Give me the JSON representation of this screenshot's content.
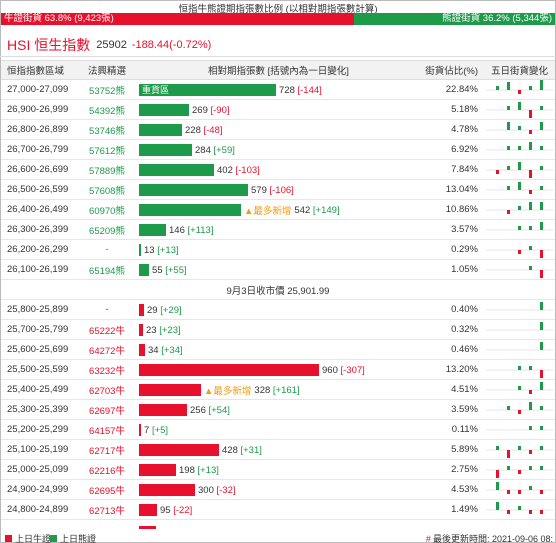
{
  "ratio": {
    "title": "恒指牛熊證期指張數比例 (以相對期指張數計算)",
    "bull_label": "牛證街貨 63.8% (9,423張)",
    "bear_label": "熊證街貨 36.2% (5,344張)",
    "bull_pct": 63.8,
    "colors": {
      "bull": "#e8112d",
      "bear": "#1d9a4a"
    }
  },
  "hsi": {
    "name": "HSI 恒生指數",
    "value": "25902",
    "change": "-188.44(-0.72%)"
  },
  "table": {
    "headers": [
      "恒指指數區域",
      "法興精選",
      "相對期指張數 [括號內為一日變化]",
      "街貨佔比(%)",
      "五日街貨變化"
    ],
    "bear_rows": [
      {
        "range": "27,000-27,099",
        "code": "53752熊",
        "contracts": 728,
        "change": "[-144]",
        "pct": "22.84%",
        "tag": "重貨區",
        "spark": [
          1,
          2,
          -1,
          1,
          3
        ]
      },
      {
        "range": "26,900-26,999",
        "code": "54392熊",
        "contracts": 269,
        "change": "[-90]",
        "pct": "5.18%",
        "spark": [
          0,
          1,
          2,
          -2,
          1
        ]
      },
      {
        "range": "26,800-26,899",
        "code": "53746熊",
        "contracts": 228,
        "change": "[-48]",
        "pct": "4.78%",
        "spark": [
          0,
          2,
          1,
          -1,
          2
        ]
      },
      {
        "range": "26,700-26,799",
        "code": "57612熊",
        "contracts": 284,
        "change": "[+59]",
        "pct": "6.92%",
        "spark": [
          0,
          1,
          1,
          2,
          1
        ]
      },
      {
        "range": "26,600-26,699",
        "code": "57889熊",
        "contracts": 402,
        "change": "[-103]",
        "pct": "7.84%",
        "spark": [
          -1,
          1,
          2,
          -2,
          1
        ]
      },
      {
        "range": "26,500-26,599",
        "code": "57608熊",
        "contracts": 579,
        "change": "[-106]",
        "pct": "13.04%",
        "spark": [
          0,
          1,
          2,
          -1,
          1
        ]
      },
      {
        "range": "26,400-26,499",
        "code": "60970熊",
        "contracts": 542,
        "change": "[+149]",
        "pct": "10.86%",
        "tag": "最多新增",
        "spark": [
          0,
          -1,
          1,
          2,
          2
        ]
      },
      {
        "range": "26,300-26,399",
        "code": "65209熊",
        "contracts": 146,
        "change": "[+113]",
        "pct": "3.57%",
        "spark": [
          0,
          0,
          1,
          1,
          2
        ]
      },
      {
        "range": "26,200-26,299",
        "code": "-",
        "contracts": 13,
        "change": "[+13]",
        "pct": "0.29%",
        "spark": [
          0,
          0,
          -1,
          1,
          -2
        ]
      },
      {
        "range": "26,100-26,199",
        "code": "65194熊",
        "contracts": 55,
        "change": "[+55]",
        "pct": "1.05%",
        "spark": [
          0,
          0,
          0,
          1,
          -2
        ]
      }
    ],
    "mid_label": "9月3日收市價 25,901.99",
    "bull_rows": [
      {
        "range": "25,800-25,899",
        "code": "-",
        "contracts": 29,
        "change": "[+29]",
        "pct": "0.40%",
        "spark": [
          0,
          0,
          0,
          0,
          2
        ]
      },
      {
        "range": "25,700-25,799",
        "code": "65222牛",
        "contracts": 23,
        "change": "[+23]",
        "pct": "0.32%",
        "spark": [
          0,
          0,
          0,
          0,
          2
        ]
      },
      {
        "range": "25,600-25,699",
        "code": "64272牛",
        "contracts": 34,
        "change": "[+34]",
        "pct": "0.46%",
        "spark": [
          0,
          0,
          0,
          0,
          2
        ]
      },
      {
        "range": "25,500-25,599",
        "code": "63232牛",
        "contracts": 960,
        "change": "[-307]",
        "pct": "13.20%",
        "spark": [
          0,
          0,
          1,
          1,
          -2
        ]
      },
      {
        "range": "25,400-25,499",
        "code": "62703牛",
        "contracts": 328,
        "change": "[+161]",
        "pct": "4.51%",
        "tag": "最多新增",
        "spark": [
          0,
          0,
          1,
          -1,
          2
        ]
      },
      {
        "range": "25,300-25,399",
        "code": "62697牛",
        "contracts": 256,
        "change": "[+54]",
        "pct": "3.59%",
        "spark": [
          0,
          1,
          -1,
          2,
          1
        ]
      },
      {
        "range": "25,200-25,299",
        "code": "64157牛",
        "contracts": 7,
        "change": "[+5]",
        "pct": "0.11%",
        "spark": [
          0,
          0,
          0,
          1,
          1
        ]
      },
      {
        "range": "25,100-25,199",
        "code": "62717牛",
        "contracts": 428,
        "change": "[+31]",
        "pct": "5.89%",
        "spark": [
          1,
          -2,
          1,
          -1,
          1
        ]
      },
      {
        "range": "25,000-25,099",
        "code": "62216牛",
        "contracts": 198,
        "change": "[+13]",
        "pct": "2.75%",
        "spark": [
          -2,
          1,
          -1,
          1,
          1
        ]
      },
      {
        "range": "24,900-24,999",
        "code": "62695牛",
        "contracts": 300,
        "change": "[-32]",
        "pct": "4.53%",
        "spark": [
          2,
          -1,
          -1,
          1,
          -1
        ]
      },
      {
        "range": "24,800-24,899",
        "code": "62713牛",
        "contracts": 95,
        "change": "[-22]",
        "pct": "1.49%",
        "spark": [
          2,
          -1,
          1,
          -1,
          -1
        ]
      }
    ]
  },
  "footer": {
    "legend_bull": "上日牛證",
    "legend_bear": "上日熊證",
    "update_time": "最後更新時間: 2021-09-06 08:"
  }
}
